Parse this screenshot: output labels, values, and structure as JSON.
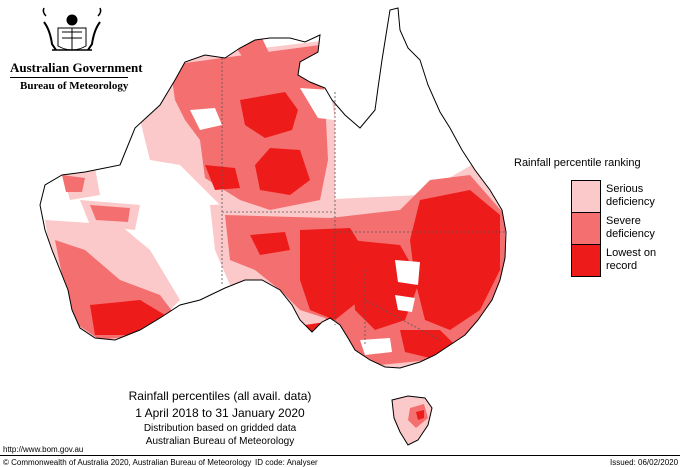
{
  "header": {
    "government": "Australian Government",
    "bureau": "Bureau of Meteorology"
  },
  "legend": {
    "title": "Rainfall percentile ranking",
    "items": [
      {
        "label": "Serious deficiency",
        "color": "#fbc9c9"
      },
      {
        "label": "Severe deficiency",
        "color": "#f46f6f"
      },
      {
        "label": "Lowest on record",
        "color": "#ee1b1b"
      }
    ]
  },
  "caption": {
    "line1": "Rainfall percentiles (all avail. data)",
    "line2": "1 April 2018 to 31 January 2020",
    "line3": "Distribution based on gridded data",
    "line4": "Australian Bureau of Meteorology"
  },
  "footer": {
    "url": "http://www.bom.gov.au",
    "copyright": "© Commonwealth of Australia 2020, Australian Bureau of Meteorology",
    "id_code": "ID code: Analyser",
    "issued": "Issued: 06/02/2020"
  },
  "map": {
    "land_color": "#ffffff",
    "outline_color": "#000000",
    "border_color": "#555555"
  }
}
